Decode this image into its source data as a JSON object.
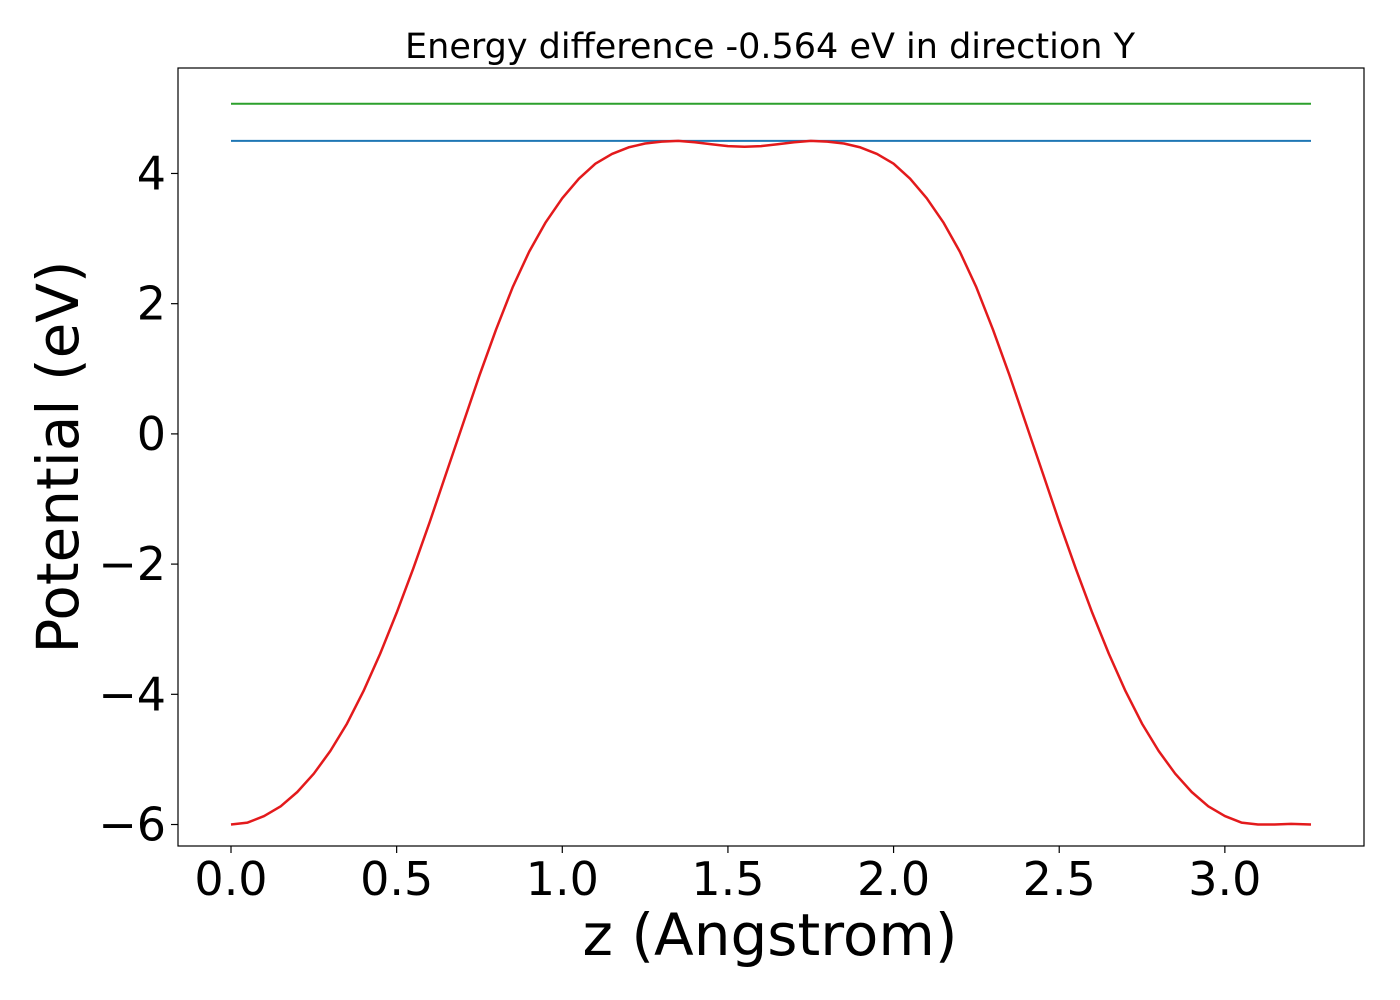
{
  "chart_data": {
    "type": "line",
    "title": "Energy difference -0.564 eV in direction Y",
    "xlabel": "z (Angstrom)",
    "ylabel": "Potential (eV)",
    "xlim": [
      -0.16,
      3.42
    ],
    "ylim": [
      -6.33,
      5.62
    ],
    "x_ticks": [
      0.0,
      0.5,
      1.0,
      1.5,
      2.0,
      2.5,
      3.0
    ],
    "x_tick_labels": [
      "0.0",
      "0.5",
      "1.0",
      "1.5",
      "2.0",
      "2.5",
      "3.0"
    ],
    "y_ticks": [
      -6,
      -4,
      -2,
      0,
      2,
      4
    ],
    "y_tick_labels": [
      "−6",
      "−4",
      "−2",
      "0",
      "2",
      "4"
    ],
    "grid": false,
    "legend": "none",
    "series": [
      {
        "color": "#2ca02c",
        "style": "horizontal-line",
        "x": [
          0.0,
          3.26
        ],
        "y": [
          5.07,
          5.07
        ]
      },
      {
        "color": "#1f77b4",
        "style": "horizontal-line",
        "x": [
          0.0,
          3.26
        ],
        "y": [
          4.5,
          4.5
        ]
      },
      {
        "color": "#e31a1c",
        "style": "curve",
        "x": [
          0.0,
          0.05,
          0.1,
          0.15,
          0.2,
          0.25,
          0.3,
          0.35,
          0.4,
          0.45,
          0.5,
          0.55,
          0.6,
          0.65,
          0.7,
          0.75,
          0.8,
          0.85,
          0.9,
          0.95,
          1.0,
          1.05,
          1.1,
          1.15,
          1.2,
          1.25,
          1.3,
          1.35,
          1.4,
          1.45,
          1.5,
          1.55,
          1.6,
          1.65,
          1.7,
          1.75,
          1.8,
          1.85,
          1.9,
          1.95,
          2.0,
          2.05,
          2.1,
          2.15,
          2.2,
          2.25,
          2.3,
          2.35,
          2.4,
          2.45,
          2.5,
          2.55,
          2.6,
          2.65,
          2.7,
          2.75,
          2.8,
          2.85,
          2.9,
          2.95,
          3.0,
          3.05,
          3.1,
          3.15,
          3.2,
          3.26
        ],
        "y": [
          -6.0,
          -5.97,
          -5.87,
          -5.72,
          -5.5,
          -5.22,
          -4.87,
          -4.45,
          -3.95,
          -3.38,
          -2.75,
          -2.07,
          -1.35,
          -0.6,
          0.15,
          0.9,
          1.6,
          2.25,
          2.8,
          3.25,
          3.62,
          3.92,
          4.15,
          4.3,
          4.4,
          4.46,
          4.49,
          4.5,
          4.48,
          4.45,
          4.42,
          4.41,
          4.42,
          4.45,
          4.48,
          4.5,
          4.49,
          4.46,
          4.4,
          4.3,
          4.15,
          3.92,
          3.62,
          3.25,
          2.8,
          2.25,
          1.6,
          0.9,
          0.15,
          -0.6,
          -1.35,
          -2.07,
          -2.75,
          -3.38,
          -3.95,
          -4.45,
          -4.87,
          -5.22,
          -5.5,
          -5.72,
          -5.87,
          -5.97,
          -6.0,
          -6.0,
          -5.99,
          -6.0
        ]
      }
    ]
  }
}
